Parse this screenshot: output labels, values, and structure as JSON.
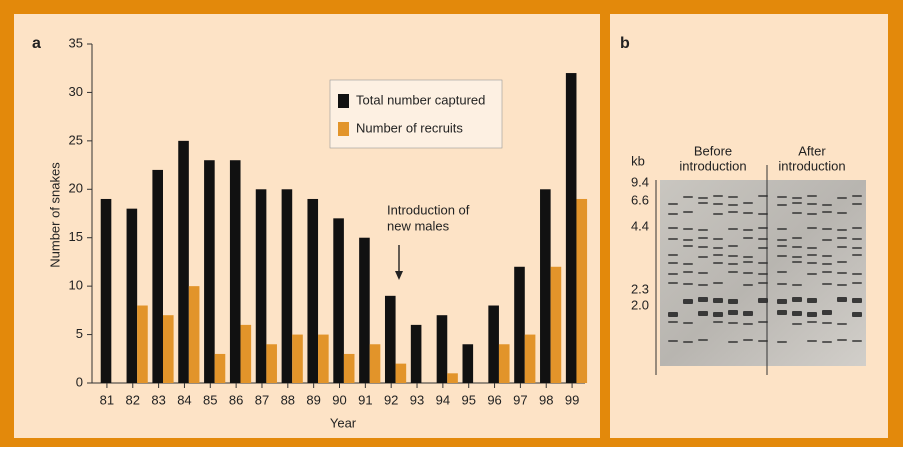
{
  "chart_data": {
    "type": "bar",
    "panel_label": "a",
    "x_label": "Year",
    "y_label": "Number of snakes",
    "categories": [
      "81",
      "82",
      "83",
      "84",
      "85",
      "86",
      "87",
      "88",
      "89",
      "90",
      "91",
      "92",
      "93",
      "94",
      "95",
      "96",
      "97",
      "98",
      "99"
    ],
    "series": [
      {
        "name": "Total number captured",
        "color": "#111111",
        "values": [
          19,
          18,
          22,
          25,
          23,
          23,
          20,
          20,
          19,
          17,
          15,
          9,
          6,
          7,
          4,
          8,
          12,
          20,
          32
        ]
      },
      {
        "name": "Number of recruits",
        "color": "#e2942a",
        "values": [
          0,
          8,
          7,
          10,
          3,
          6,
          4,
          5,
          5,
          3,
          4,
          2,
          0,
          1,
          0,
          4,
          5,
          12,
          19
        ]
      }
    ],
    "ylim": [
      0,
      35
    ],
    "yticks": [
      0,
      5,
      10,
      15,
      20,
      25,
      30,
      35
    ],
    "annotation": [
      "Introduction of",
      "new males"
    ],
    "annotation_category": "92"
  },
  "panel_b": {
    "panel_label": "b",
    "unit": "kb",
    "markers": [
      "9.4",
      "6.6",
      "4.4",
      "2.3",
      "2.0"
    ],
    "before": [
      "Before",
      "introduction"
    ],
    "after": [
      "After",
      "introduction"
    ]
  }
}
